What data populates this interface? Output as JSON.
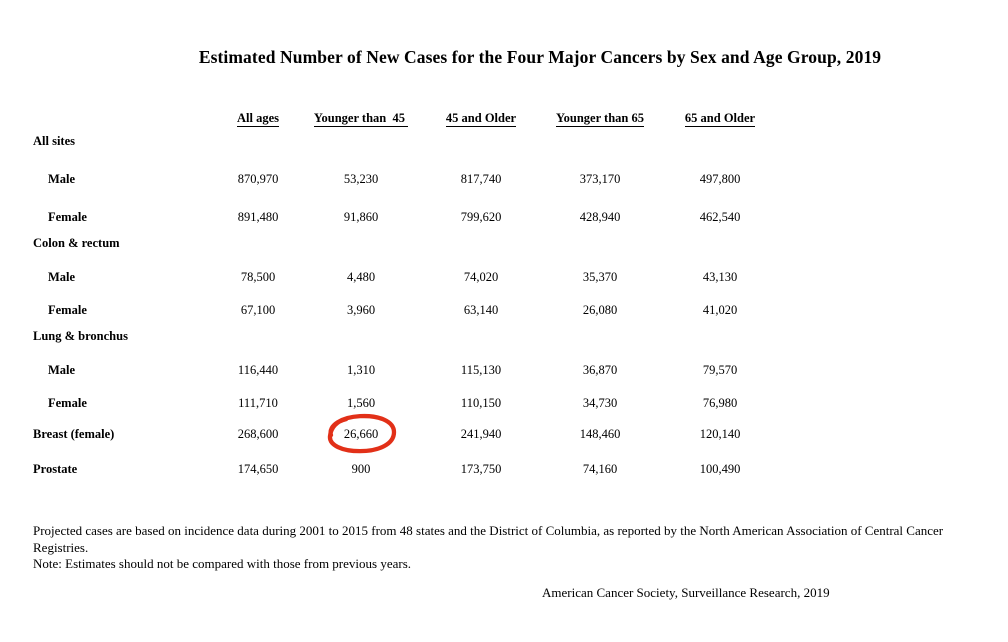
{
  "title": "Estimated Number of New Cases for the Four Major Cancers by Sex and Age Group, 2019",
  "table": {
    "columns": [
      "All ages",
      "Younger than  45 ",
      "45 and Older",
      "Younger than 65",
      "65 and Older"
    ],
    "rows": [
      {
        "type": "section",
        "label": "All sites"
      },
      {
        "type": "data",
        "indent": true,
        "label": "Male",
        "values": [
          "870,970",
          "53,230",
          "817,740",
          "373,170",
          "497,800"
        ]
      },
      {
        "type": "data",
        "indent": true,
        "label": "Female",
        "values": [
          "891,480",
          "91,860",
          "799,620",
          "428,940",
          "462,540"
        ]
      },
      {
        "type": "section",
        "label": "Colon & rectum"
      },
      {
        "type": "data",
        "indent": true,
        "label": "Male",
        "values": [
          "78,500",
          "4,480",
          "74,020",
          "35,370",
          "43,130"
        ]
      },
      {
        "type": "data",
        "indent": true,
        "label": "Female",
        "values": [
          "67,100",
          "3,960",
          "63,140",
          "26,080",
          "41,020"
        ]
      },
      {
        "type": "section",
        "label": "Lung & bronchus"
      },
      {
        "type": "data",
        "indent": true,
        "label": "Male",
        "values": [
          "116,440",
          "1,310",
          "115,130",
          "36,870",
          "79,570"
        ]
      },
      {
        "type": "data",
        "indent": true,
        "label": "Female",
        "values": [
          "111,710",
          "1,560",
          "110,150",
          "34,730",
          "76,980"
        ]
      },
      {
        "type": "data",
        "indent": false,
        "label": "Breast (female)",
        "values": [
          "268,600",
          "26,660",
          "241,940",
          "148,460",
          "120,140"
        ],
        "circled": 1
      },
      {
        "type": "data",
        "indent": false,
        "label": "Prostate",
        "values": [
          "174,650",
          "900",
          "173,750",
          "74,160",
          "100,490"
        ]
      }
    ],
    "annotation": {
      "shape": "hand-drawn red circle",
      "around_value": "26,660",
      "row": "Breast (female)",
      "column": "Younger than  45",
      "color": "#e23018"
    }
  },
  "footnotes": {
    "projection": "Projected cases are based on incidence data during 2001 to 2015 from 48 states and the District of Columbia, as reported by the North American Association of Central Cancer  Registries.",
    "note": "Note: Estimates should not be compared with those from previous years."
  },
  "source": "American Cancer Society, Surveillance Research, 2019"
}
